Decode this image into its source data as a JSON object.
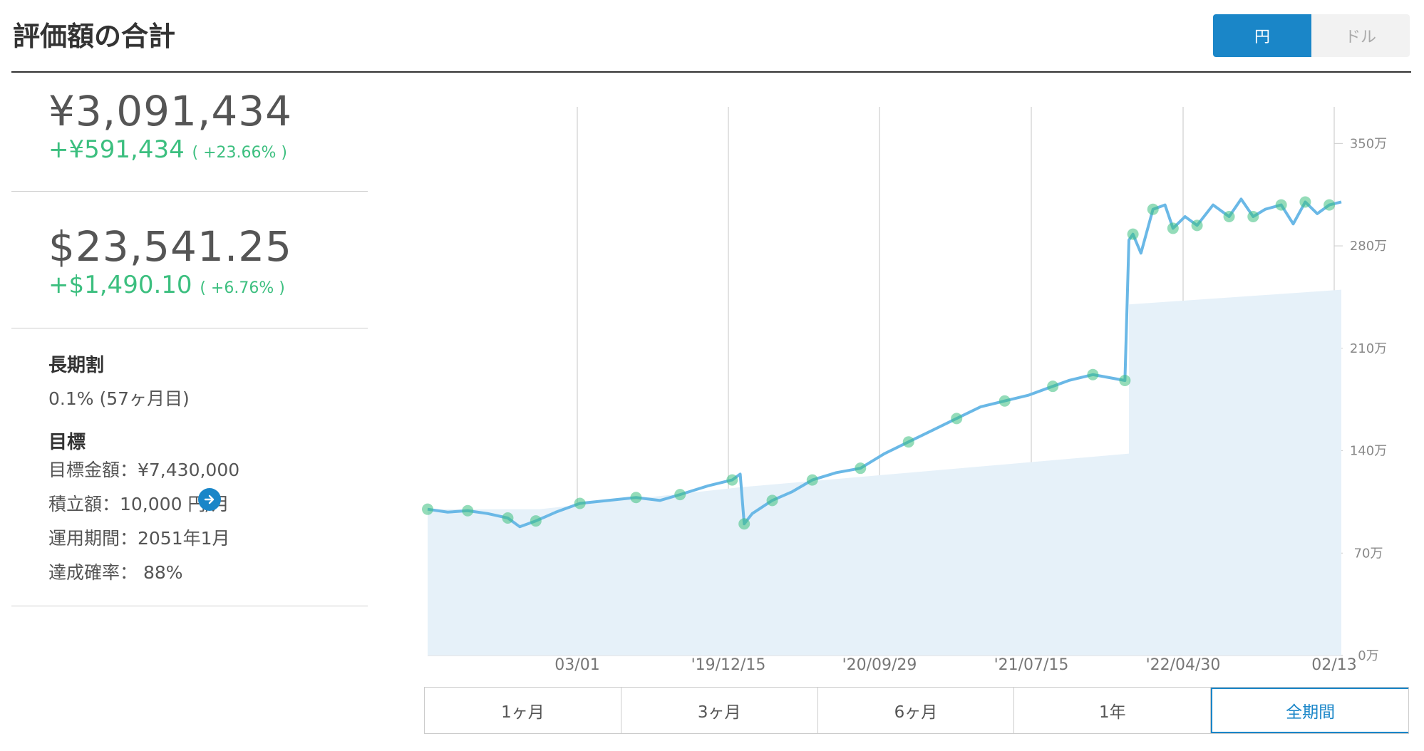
{
  "header": {
    "title": "評価額の合計",
    "currency_yen": "円",
    "currency_usd": "ドル"
  },
  "summary": {
    "yen_total": "¥3,091,434",
    "yen_gain": "+¥591,434",
    "yen_gain_pct": "( +23.66% )",
    "usd_total": "$23,541.25",
    "usd_gain": "+$1,490.10",
    "usd_gain_pct": "( +6.76% )"
  },
  "long_term": {
    "heading": "長期割",
    "value": "0.1% (57ヶ月目)"
  },
  "goal": {
    "heading": "目標",
    "target_amount": "目標金額：¥7,430,000",
    "monthly": "積立額：10,000 円/月",
    "period": "運用期間：2051年1月",
    "probability": "達成確率： 88%"
  },
  "periods": [
    "1ヶ月",
    "3ヶ月",
    "6ヶ月",
    "1年",
    "全期間"
  ],
  "active_period": "全期間",
  "colors": {
    "accent": "#1a86c8",
    "gain": "#3cbf7f",
    "line": "#6ab8e6",
    "fill": "#e6f1f9",
    "dots": "#3cbf7f"
  },
  "chart_data": {
    "type": "line",
    "x_tick_labels": [
      "03/01",
      "'19/12/15",
      "'20/09/29",
      "'21/07/15",
      "'22/04/30",
      "02/13"
    ],
    "y_tick_labels": [
      "0万",
      "70万",
      "140万",
      "210万",
      "280万",
      "350万"
    ],
    "y_range": [
      0,
      375
    ],
    "y_unit": "万円",
    "series": [
      {
        "name": "value",
        "points": [
          [
            0,
            100
          ],
          [
            5,
            98
          ],
          [
            10,
            99
          ],
          [
            15,
            97
          ],
          [
            20,
            94
          ],
          [
            23,
            88
          ],
          [
            27,
            92
          ],
          [
            32,
            98
          ],
          [
            38,
            104
          ],
          [
            45,
            106
          ],
          [
            52,
            108
          ],
          [
            58,
            106
          ],
          [
            63,
            110
          ],
          [
            70,
            116
          ],
          [
            76,
            120
          ],
          [
            78,
            124
          ],
          [
            79,
            90
          ],
          [
            81,
            97
          ],
          [
            86,
            106
          ],
          [
            91,
            112
          ],
          [
            96,
            120
          ],
          [
            102,
            125
          ],
          [
            108,
            128
          ],
          [
            114,
            138
          ],
          [
            120,
            146
          ],
          [
            126,
            154
          ],
          [
            132,
            162
          ],
          [
            138,
            170
          ],
          [
            144,
            174
          ],
          [
            150,
            178
          ],
          [
            156,
            184
          ],
          [
            160,
            188
          ],
          [
            166,
            192
          ],
          [
            170,
            190
          ],
          [
            174,
            188
          ],
          [
            175,
            284
          ],
          [
            176,
            288
          ],
          [
            178,
            275
          ],
          [
            181,
            305
          ],
          [
            184,
            308
          ],
          [
            186,
            292
          ],
          [
            189,
            300
          ],
          [
            192,
            294
          ],
          [
            196,
            308
          ],
          [
            200,
            300
          ],
          [
            203,
            312
          ],
          [
            206,
            300
          ],
          [
            209,
            305
          ],
          [
            213,
            308
          ],
          [
            216,
            295
          ],
          [
            219,
            310
          ],
          [
            222,
            302
          ],
          [
            225,
            308
          ],
          [
            228,
            310
          ]
        ]
      },
      {
        "name": "principal",
        "points": [
          [
            0,
            100
          ],
          [
            28,
            100
          ],
          [
            78,
            115
          ],
          [
            175,
            138
          ],
          [
            175,
            240
          ],
          [
            228,
            250
          ]
        ]
      }
    ],
    "grid_vertical": true,
    "y_axis_side": "right"
  }
}
